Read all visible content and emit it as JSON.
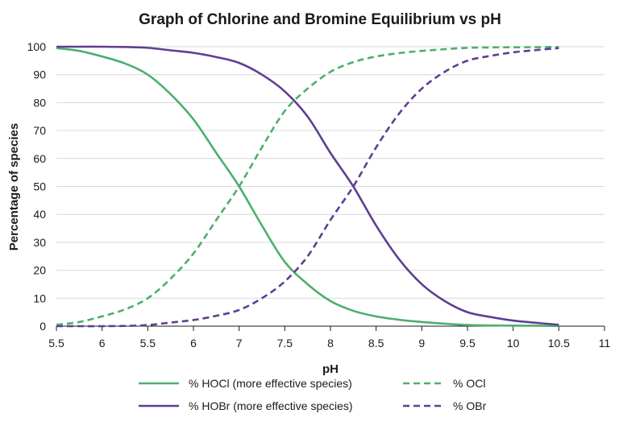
{
  "chart_data": {
    "type": "line",
    "title": "Graph of Chlorine and Bromine Equilibrium vs pH",
    "xlabel": "pH",
    "ylabel": "Percentage of species",
    "x_tick_labels": [
      "5.5",
      "6",
      "5.5",
      "6",
      "7",
      "7.5",
      "8",
      "8.5",
      "9",
      "9.5",
      "10",
      "10.5",
      "11"
    ],
    "y_ticks": [
      0,
      10,
      20,
      30,
      40,
      50,
      60,
      70,
      80,
      90,
      100
    ],
    "ylim": [
      0,
      100
    ],
    "grid": "horizontal",
    "legend": "bottom",
    "series": [
      {
        "name": "% HOCl (more effective species)",
        "color": "#4caf6e",
        "dash": "solid",
        "points": [
          [
            0,
            99.5
          ],
          [
            0.5,
            98.5
          ],
          [
            1,
            96.5
          ],
          [
            1.5,
            94
          ],
          [
            2,
            90
          ],
          [
            2.5,
            83
          ],
          [
            3,
            74
          ],
          [
            3.5,
            62
          ],
          [
            4,
            50
          ],
          [
            4.5,
            36
          ],
          [
            5,
            23
          ],
          [
            5.5,
            15
          ],
          [
            6,
            9
          ],
          [
            6.5,
            5.5
          ],
          [
            7,
            3.5
          ],
          [
            7.5,
            2.3
          ],
          [
            8,
            1.5
          ],
          [
            8.5,
            0.9
          ],
          [
            9,
            0.4
          ],
          [
            9.5,
            0.25
          ],
          [
            10,
            0.2
          ],
          [
            10.5,
            0.15
          ],
          [
            11,
            0.1
          ]
        ]
      },
      {
        "name": "% OCl",
        "color": "#4caf6e",
        "dash": "dashed",
        "points": [
          [
            0,
            0.5
          ],
          [
            0.5,
            1.5
          ],
          [
            1,
            3.5
          ],
          [
            1.5,
            6
          ],
          [
            2,
            10
          ],
          [
            2.5,
            17
          ],
          [
            3,
            26
          ],
          [
            3.5,
            38
          ],
          [
            4,
            50
          ],
          [
            4.5,
            64
          ],
          [
            5,
            77
          ],
          [
            5.5,
            85
          ],
          [
            6,
            91
          ],
          [
            6.5,
            94.5
          ],
          [
            7,
            96.5
          ],
          [
            7.5,
            97.7
          ],
          [
            8,
            98.5
          ],
          [
            8.5,
            99.1
          ],
          [
            9,
            99.6
          ],
          [
            9.5,
            99.75
          ],
          [
            10,
            99.8
          ],
          [
            10.5,
            99.85
          ],
          [
            11,
            99.9
          ]
        ]
      },
      {
        "name": "% HOBr (more effective species)",
        "color": "#5e3f92",
        "dash": "solid",
        "points": [
          [
            0,
            100
          ],
          [
            0.5,
            100
          ],
          [
            1,
            100
          ],
          [
            1.5,
            99.9
          ],
          [
            2,
            99.6
          ],
          [
            2.5,
            98.7
          ],
          [
            3,
            97.8
          ],
          [
            3.5,
            96.3
          ],
          [
            4,
            94.2
          ],
          [
            4.5,
            90
          ],
          [
            5,
            84
          ],
          [
            5.5,
            75
          ],
          [
            6,
            62
          ],
          [
            6.5,
            50
          ],
          [
            7,
            36
          ],
          [
            7.5,
            24
          ],
          [
            8,
            15
          ],
          [
            8.5,
            9
          ],
          [
            9,
            5
          ],
          [
            9.5,
            3.3
          ],
          [
            10,
            2
          ],
          [
            10.5,
            1.2
          ],
          [
            11,
            0.5
          ]
        ]
      },
      {
        "name": "% OBr",
        "color": "#5e3f92",
        "dash": "dashed",
        "points": [
          [
            0,
            0
          ],
          [
            0.5,
            0
          ],
          [
            1,
            0
          ],
          [
            1.5,
            0.1
          ],
          [
            2,
            0.4
          ],
          [
            2.5,
            1.3
          ],
          [
            3,
            2.2
          ],
          [
            3.5,
            3.7
          ],
          [
            4,
            5.8
          ],
          [
            4.5,
            10
          ],
          [
            5,
            16
          ],
          [
            5.5,
            25
          ],
          [
            6,
            38
          ],
          [
            6.5,
            50
          ],
          [
            7,
            64
          ],
          [
            7.5,
            76
          ],
          [
            8,
            85
          ],
          [
            8.5,
            91
          ],
          [
            9,
            95
          ],
          [
            9.5,
            96.7
          ],
          [
            10,
            98
          ],
          [
            10.5,
            98.8
          ],
          [
            11,
            99.5
          ]
        ]
      }
    ]
  }
}
